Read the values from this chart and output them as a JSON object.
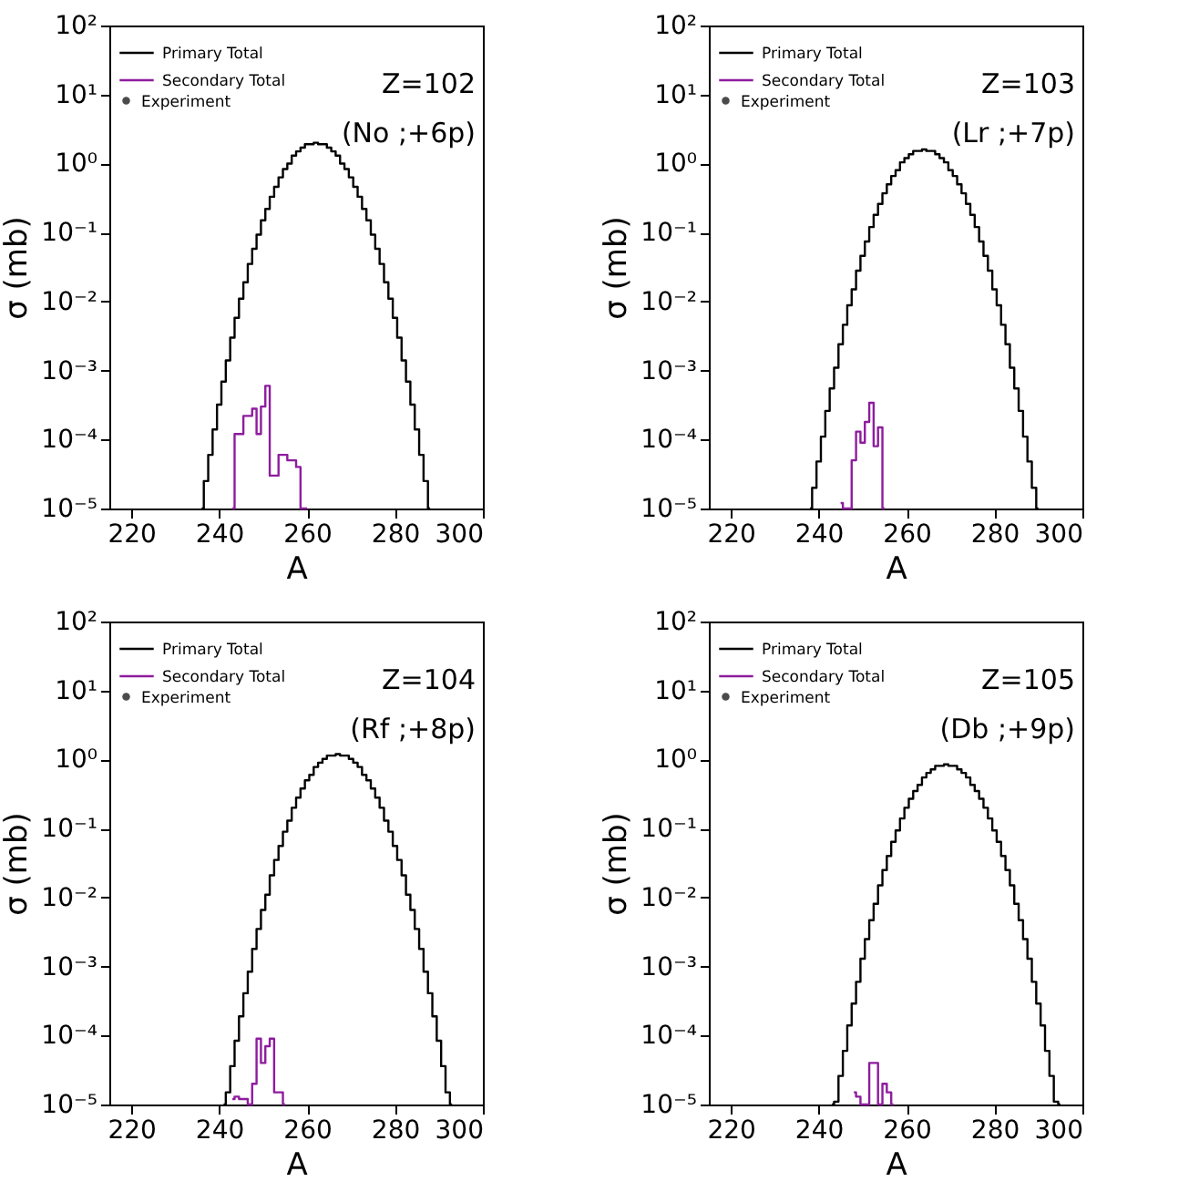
{
  "chart_data": [
    {
      "type": "step",
      "xlabel": "A",
      "ylabel": "σ (mb)",
      "xlim": [
        215,
        300
      ],
      "xticks": [
        220,
        240,
        260,
        280,
        300
      ],
      "ylim": [
        1e-05,
        100
      ],
      "log": "y",
      "grid": false,
      "legend": "top left",
      "yticks": [
        {
          "value": 1e-05,
          "label": "10⁻⁵"
        },
        {
          "value": 0.0001,
          "label": "10⁻⁴"
        },
        {
          "value": 0.001,
          "label": "10⁻³"
        },
        {
          "value": 0.01,
          "label": "10⁻²"
        },
        {
          "value": 0.1,
          "label": "10⁻¹"
        },
        {
          "value": 1,
          "label": "10⁰"
        },
        {
          "value": 10,
          "label": "10¹"
        },
        {
          "value": 100,
          "label": "10²"
        }
      ],
      "annotations": [
        "Z=102",
        "(No ;+6p)"
      ],
      "series": [
        {
          "name": "Primary Total",
          "color": "#000000",
          "x": [
            236,
            237,
            238,
            239,
            240,
            241,
            242,
            243,
            244,
            245,
            246,
            247,
            248,
            249,
            250,
            251,
            252,
            253,
            254,
            255,
            256,
            257,
            258,
            259,
            260,
            261,
            262,
            263,
            264,
            265,
            266,
            267,
            268,
            269,
            270,
            271,
            272,
            273,
            274,
            275,
            276,
            277,
            278,
            279,
            280,
            281,
            282,
            283,
            284,
            285,
            286,
            287,
            288
          ],
          "values": [
            1e-05,
            2.5e-05,
            6e-05,
            0.00014,
            0.00032,
            0.00069,
            0.0014,
            0.003,
            0.0058,
            0.011,
            0.019,
            0.035,
            0.058,
            0.093,
            0.15,
            0.22,
            0.33,
            0.46,
            0.63,
            0.83,
            1.0,
            1.3,
            1.5,
            1.7,
            1.9,
            1.9,
            2.0,
            1.9,
            1.9,
            1.7,
            1.5,
            1.3,
            1.0,
            0.83,
            0.63,
            0.46,
            0.33,
            0.22,
            0.15,
            0.093,
            0.058,
            0.035,
            0.019,
            0.011,
            0.0058,
            0.003,
            0.0014,
            0.00069,
            0.00032,
            0.00014,
            6e-05,
            2.5e-05,
            1e-05
          ]
        },
        {
          "name": "Secondary Total",
          "color": "#8e1c9e",
          "x": [
            243,
            244,
            245,
            246,
            247,
            248,
            249,
            250,
            251,
            252,
            253,
            254,
            255,
            256,
            257,
            258,
            259,
            260
          ],
          "values": [
            1e-05,
            0.00012,
            0.00012,
            0.00022,
            0.00022,
            0.00028,
            0.00012,
            0.0003,
            0.0006,
            3e-05,
            3e-05,
            6e-05,
            6e-05,
            5e-05,
            5e-05,
            4e-05,
            1e-05,
            1e-05
          ]
        },
        {
          "name": "Experiment",
          "type": "scatter",
          "color": "#000000"
        }
      ]
    },
    {
      "type": "step",
      "xlabel": "A",
      "ylabel": "σ (mb)",
      "xlim": [
        215,
        300
      ],
      "xticks": [
        220,
        240,
        260,
        280,
        300
      ],
      "ylim": [
        1e-05,
        100
      ],
      "log": "y",
      "grid": false,
      "legend": "top left",
      "yticks": [
        {
          "value": 1e-05,
          "label": "10⁻⁵"
        },
        {
          "value": 0.0001,
          "label": "10⁻⁴"
        },
        {
          "value": 0.001,
          "label": "10⁻³"
        },
        {
          "value": 0.01,
          "label": "10⁻²"
        },
        {
          "value": 0.1,
          "label": "10⁻¹"
        },
        {
          "value": 1,
          "label": "10⁰"
        },
        {
          "value": 10,
          "label": "10¹"
        },
        {
          "value": 100,
          "label": "10²"
        }
      ],
      "annotations": [
        "Z=103",
        "(Lr ;+7p)"
      ],
      "series": [
        {
          "name": "Primary Total",
          "color": "#000000",
          "x": [
            238,
            239,
            240,
            241,
            242,
            243,
            244,
            245,
            246,
            247,
            248,
            249,
            250,
            251,
            252,
            253,
            254,
            255,
            256,
            257,
            258,
            259,
            260,
            261,
            262,
            263,
            264,
            265,
            266,
            267,
            268,
            269,
            270,
            271,
            272,
            273,
            274,
            275,
            276,
            277,
            278,
            279,
            280,
            281,
            282,
            283,
            284,
            285,
            286,
            287,
            288,
            289,
            290
          ],
          "values": [
            1e-05,
            2e-05,
            4.8e-05,
            0.00011,
            0.00026,
            0.00055,
            0.0011,
            0.0024,
            0.0046,
            0.0088,
            0.015,
            0.028,
            0.046,
            0.074,
            0.12,
            0.18,
            0.26,
            0.37,
            0.5,
            0.66,
            0.8,
            1.04,
            1.2,
            1.36,
            1.52,
            1.52,
            1.6,
            1.52,
            1.52,
            1.36,
            1.2,
            1.04,
            0.8,
            0.66,
            0.5,
            0.37,
            0.26,
            0.18,
            0.12,
            0.074,
            0.046,
            0.028,
            0.015,
            0.0088,
            0.0046,
            0.0024,
            0.0011,
            0.00055,
            0.00026,
            0.00011,
            4.8e-05,
            2e-05,
            1e-05
          ]
        },
        {
          "name": "Secondary Total",
          "color": "#8e1c9e",
          "x": [
            245,
            246,
            247,
            248,
            249,
            250,
            251,
            252,
            253,
            254,
            255
          ],
          "values": [
            1.2e-05,
            1e-05,
            1e-05,
            5e-05,
            0.00013,
            9e-05,
            0.00018,
            0.00034,
            8e-05,
            0.00015,
            1e-05
          ]
        },
        {
          "name": "Experiment",
          "type": "scatter",
          "color": "#000000"
        }
      ]
    },
    {
      "type": "step",
      "xlabel": "A",
      "ylabel": "σ (mb)",
      "xlim": [
        215,
        300
      ],
      "xticks": [
        220,
        240,
        260,
        280,
        300
      ],
      "ylim": [
        1e-05,
        100
      ],
      "log": "y",
      "grid": false,
      "legend": "top left",
      "yticks": [
        {
          "value": 1e-05,
          "label": "10⁻⁵"
        },
        {
          "value": 0.0001,
          "label": "10⁻⁴"
        },
        {
          "value": 0.001,
          "label": "10⁻³"
        },
        {
          "value": 0.01,
          "label": "10⁻²"
        },
        {
          "value": 0.1,
          "label": "10⁻¹"
        },
        {
          "value": 1,
          "label": "10⁰"
        },
        {
          "value": 10,
          "label": "10¹"
        },
        {
          "value": 100,
          "label": "10²"
        }
      ],
      "annotations": [
        "Z=104",
        "(Rf ;+8p)"
      ],
      "series": [
        {
          "name": "Primary Total",
          "color": "#000000",
          "x": [
            241,
            242,
            243,
            244,
            245,
            246,
            247,
            248,
            249,
            250,
            251,
            252,
            253,
            254,
            255,
            256,
            257,
            258,
            259,
            260,
            261,
            262,
            263,
            264,
            265,
            266,
            267,
            268,
            269,
            270,
            271,
            272,
            273,
            274,
            275,
            276,
            277,
            278,
            279,
            280,
            281,
            282,
            283,
            284,
            285,
            286,
            287,
            288,
            289,
            290,
            291,
            292,
            293
          ],
          "values": [
            1e-05,
            1.5e-05,
            3.6e-05,
            8.4e-05,
            0.00019,
            0.00041,
            0.00084,
            0.0018,
            0.0035,
            0.0066,
            0.011,
            0.021,
            0.035,
            0.056,
            0.09,
            0.13,
            0.2,
            0.28,
            0.38,
            0.5,
            0.6,
            0.78,
            0.9,
            1.02,
            1.14,
            1.14,
            1.2,
            1.14,
            1.14,
            1.02,
            0.9,
            0.78,
            0.6,
            0.5,
            0.38,
            0.28,
            0.2,
            0.13,
            0.09,
            0.056,
            0.035,
            0.021,
            0.011,
            0.0066,
            0.0035,
            0.0018,
            0.00084,
            0.00041,
            0.00019,
            8.4e-05,
            3.6e-05,
            1.5e-05,
            1e-05
          ]
        },
        {
          "name": "Secondary Total",
          "color": "#8e1c9e",
          "x": [
            243,
            244,
            245,
            246,
            247,
            248,
            249,
            250,
            251,
            252,
            253,
            254,
            255
          ],
          "values": [
            1.2e-05,
            1.3e-05,
            1.2e-05,
            1.2e-05,
            1e-05,
            2e-05,
            9e-05,
            4e-05,
            7e-05,
            9e-05,
            1.5e-05,
            1.5e-05,
            1e-05
          ]
        },
        {
          "name": "Experiment",
          "type": "scatter",
          "color": "#000000"
        }
      ]
    },
    {
      "type": "step",
      "xlabel": "A",
      "ylabel": "σ (mb)",
      "xlim": [
        215,
        300
      ],
      "xticks": [
        220,
        240,
        260,
        280,
        300
      ],
      "ylim": [
        1e-05,
        100
      ],
      "log": "y",
      "grid": false,
      "legend": "top left",
      "yticks": [
        {
          "value": 1e-05,
          "label": "10⁻⁵"
        },
        {
          "value": 0.0001,
          "label": "10⁻⁴"
        },
        {
          "value": 0.001,
          "label": "10⁻³"
        },
        {
          "value": 0.01,
          "label": "10⁻²"
        },
        {
          "value": 0.1,
          "label": "10⁻¹"
        },
        {
          "value": 1,
          "label": "10⁰"
        },
        {
          "value": 10,
          "label": "10¹"
        },
        {
          "value": 100,
          "label": "10²"
        }
      ],
      "annotations": [
        "Z=105",
        "(Db ;+9p)"
      ],
      "series": [
        {
          "name": "Primary Total",
          "color": "#000000",
          "x": [
            243,
            244,
            245,
            246,
            247,
            248,
            249,
            250,
            251,
            252,
            253,
            254,
            255,
            256,
            257,
            258,
            259,
            260,
            261,
            262,
            263,
            264,
            265,
            266,
            267,
            268,
            269,
            270,
            271,
            272,
            273,
            274,
            275,
            276,
            277,
            278,
            279,
            280,
            281,
            282,
            283,
            284,
            285,
            286,
            287,
            288,
            289,
            290,
            291,
            292,
            293,
            294,
            295
          ],
          "values": [
            1e-05,
            1.1e-05,
            2.6e-05,
            6e-05,
            0.00014,
            0.00029,
            0.0006,
            0.0013,
            0.0025,
            0.0047,
            0.0081,
            0.015,
            0.025,
            0.04,
            0.064,
            0.094,
            0.14,
            0.2,
            0.27,
            0.35,
            0.43,
            0.55,
            0.64,
            0.72,
            0.81,
            0.81,
            0.85,
            0.81,
            0.81,
            0.72,
            0.64,
            0.55,
            0.43,
            0.35,
            0.27,
            0.2,
            0.14,
            0.094,
            0.064,
            0.04,
            0.025,
            0.015,
            0.0081,
            0.0047,
            0.0025,
            0.0013,
            0.0006,
            0.00029,
            0.00014,
            6e-05,
            2.6e-05,
            1.1e-05,
            1e-05
          ]
        },
        {
          "name": "Secondary Total",
          "color": "#8e1c9e",
          "x": [
            248,
            249,
            250,
            251,
            252,
            253,
            254,
            255,
            256,
            257
          ],
          "values": [
            1.5e-05,
            1.3e-05,
            1e-05,
            1e-05,
            4e-05,
            4e-05,
            1e-05,
            2e-05,
            1.5e-05,
            1e-05
          ]
        },
        {
          "name": "Experiment",
          "type": "scatter",
          "color": "#000000"
        }
      ]
    }
  ]
}
